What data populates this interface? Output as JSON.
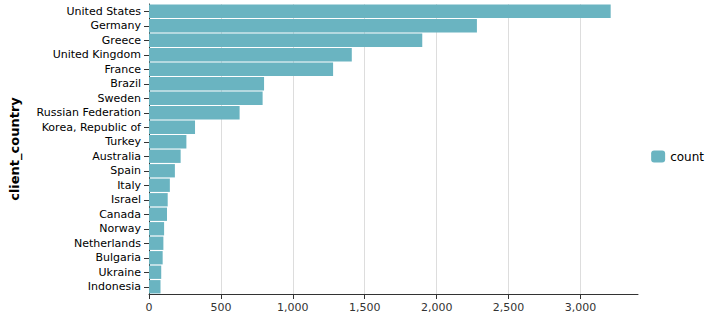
{
  "chart_data": {
    "type": "bar",
    "orientation": "horizontal",
    "ylabel": "client_country",
    "categories": [
      "United States",
      "Germany",
      "Greece",
      "United Kingdom",
      "France",
      "Brazil",
      "Sweden",
      "Russian Federation",
      "Korea, Republic of",
      "Turkey",
      "Australia",
      "Spain",
      "Italy",
      "Israel",
      "Canada",
      "Norway",
      "Netherlands",
      "Bulgaria",
      "Ukraine",
      "Indonesia"
    ],
    "series": [
      {
        "name": "count",
        "color": "#6ab4c1",
        "values": [
          3210,
          2280,
          1900,
          1410,
          1280,
          800,
          790,
          630,
          320,
          260,
          220,
          180,
          145,
          130,
          125,
          105,
          100,
          95,
          85,
          80
        ]
      }
    ],
    "xlim": [
      0,
      3400
    ],
    "xticks": [
      0,
      500,
      {
        "value": 1000,
        "label": "1,000"
      },
      {
        "value": 1500,
        "label": "1,500"
      },
      {
        "value": 2000,
        "label": "2,000"
      },
      {
        "value": 2500,
        "label": "2,500"
      },
      {
        "value": 3000,
        "label": "3,000"
      }
    ],
    "grid": true,
    "legend": "right"
  }
}
